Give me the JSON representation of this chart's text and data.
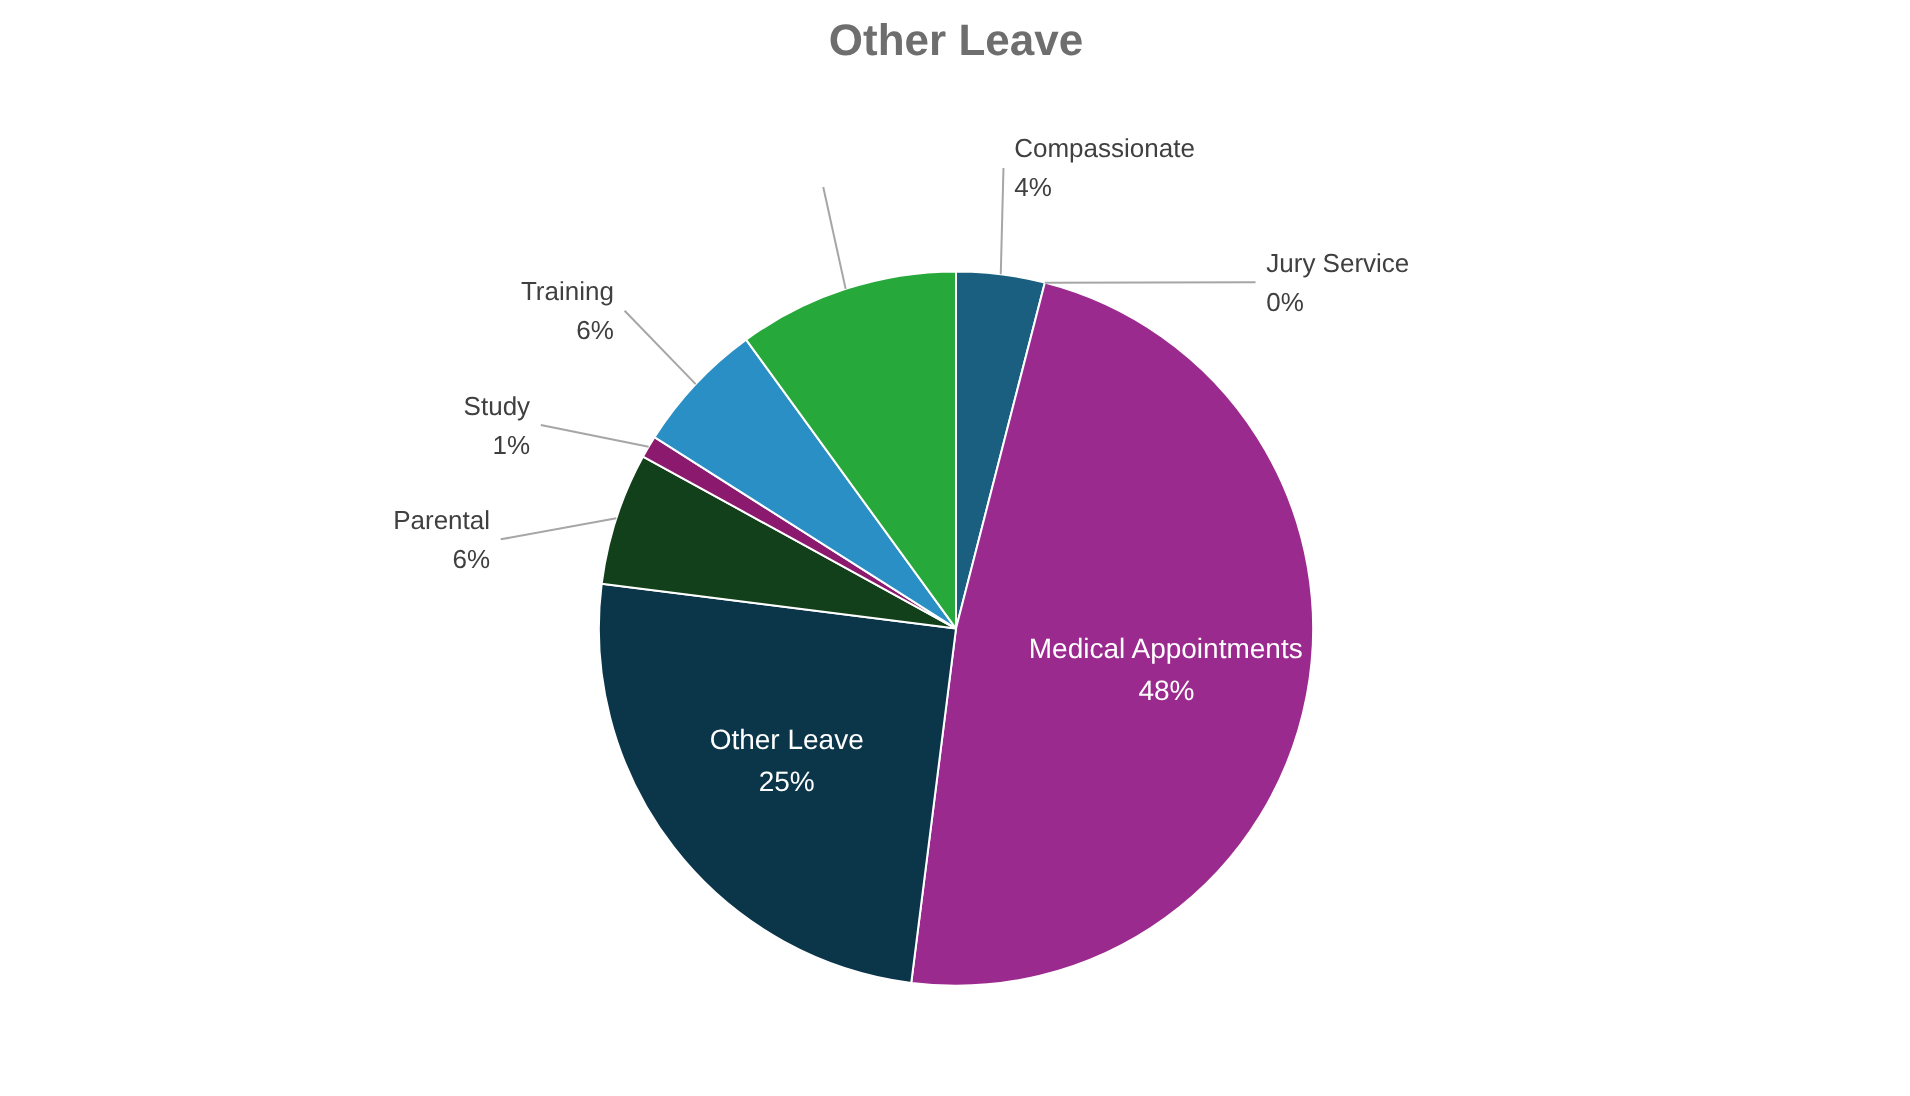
{
  "chart_data": {
    "type": "pie",
    "title": "Other Leave",
    "categories": [
      "Compassionate",
      "Jury Service",
      "Medical Appointments",
      "Other Leave",
      "Parental",
      "Study",
      "Training",
      null
    ],
    "values": [
      4,
      0,
      48,
      25,
      6,
      1,
      6,
      10
    ],
    "value_labels": [
      "4%",
      "0%",
      "48%",
      "25%",
      "6%",
      "1%",
      "6%",
      null
    ],
    "colors": [
      "#1a5e80",
      "#2e8b2e",
      "#9b2a8f",
      "#0b364a",
      "#12401a",
      "#8b1a6e",
      "#2a8fc4",
      "#27a83a"
    ]
  }
}
